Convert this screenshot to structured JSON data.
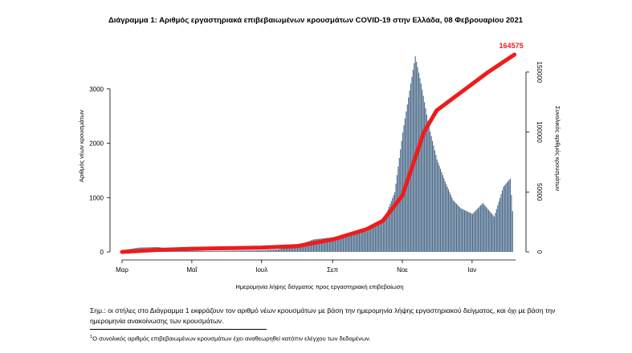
{
  "chart_data": {
    "type": "bar+line",
    "title": "Διάγραμμα 1: Αριθμός εργαστηριακά επιβεβαιωμένων κρουσμάτων COVID-19 στην Ελλάδα, 08 Φεβρουαρίου 2021",
    "xlabel": "Ημερομηνία λήψης δείγματος προς εργαστηριακή επιβεβαίωση",
    "ylabel_left": "Αριθμός νέων κρουσμάτων",
    "ylabel_right": "Συνολικός αριθμός κρουσμάτων",
    "categories": [
      "Μαρ",
      "Μαΐ",
      "Ιουλ",
      "Σεπ",
      "Νοε",
      "Ιαν"
    ],
    "ylim_left": [
      0,
      3750
    ],
    "yticks_left": [
      "0",
      "1000",
      "2000",
      "3000"
    ],
    "ylim_right": [
      0,
      170000
    ],
    "yticks_right": [
      "0",
      "50000",
      "100000",
      "150000"
    ],
    "grid": false,
    "series": [
      {
        "kind": "bar",
        "color": "#4f6e8c",
        "points": [
          {
            "x": "2020-03-01",
            "y": 30
          },
          {
            "x": "2020-03-15",
            "y": 80
          },
          {
            "x": "2020-04-01",
            "y": 90
          },
          {
            "x": "2020-04-15",
            "y": 40
          },
          {
            "x": "2020-05-01",
            "y": 20
          },
          {
            "x": "2020-05-15",
            "y": 15
          },
          {
            "x": "2020-06-01",
            "y": 20
          },
          {
            "x": "2020-06-15",
            "y": 25
          },
          {
            "x": "2020-07-01",
            "y": 30
          },
          {
            "x": "2020-07-15",
            "y": 45
          },
          {
            "x": "2020-08-01",
            "y": 120
          },
          {
            "x": "2020-08-15",
            "y": 230
          },
          {
            "x": "2020-09-01",
            "y": 270
          },
          {
            "x": "2020-09-15",
            "y": 320
          },
          {
            "x": "2020-10-01",
            "y": 380
          },
          {
            "x": "2020-10-15",
            "y": 560
          },
          {
            "x": "2020-10-25",
            "y": 1100
          },
          {
            "x": "2020-11-01",
            "y": 2200
          },
          {
            "x": "2020-11-08",
            "y": 3100
          },
          {
            "x": "2020-11-12",
            "y": 3600
          },
          {
            "x": "2020-11-17",
            "y": 3100
          },
          {
            "x": "2020-11-24",
            "y": 2300
          },
          {
            "x": "2020-12-01",
            "y": 1700
          },
          {
            "x": "2020-12-08",
            "y": 1300
          },
          {
            "x": "2020-12-15",
            "y": 950
          },
          {
            "x": "2020-12-22",
            "y": 800
          },
          {
            "x": "2021-01-01",
            "y": 700
          },
          {
            "x": "2021-01-10",
            "y": 900
          },
          {
            "x": "2021-01-20",
            "y": 650
          },
          {
            "x": "2021-01-28",
            "y": 1200
          },
          {
            "x": "2021-02-03",
            "y": 1350
          },
          {
            "x": "2021-02-06",
            "y": 450
          }
        ]
      },
      {
        "kind": "line",
        "color": "#ee1c1c",
        "points": [
          {
            "x": "2020-03-01",
            "y": 0
          },
          {
            "x": "2020-04-01",
            "y": 1700
          },
          {
            "x": "2020-05-01",
            "y": 2600
          },
          {
            "x": "2020-06-01",
            "y": 3100
          },
          {
            "x": "2020-07-01",
            "y": 3600
          },
          {
            "x": "2020-08-01",
            "y": 4800
          },
          {
            "x": "2020-09-01",
            "y": 10300
          },
          {
            "x": "2020-10-01",
            "y": 19000
          },
          {
            "x": "2020-10-15",
            "y": 26000
          },
          {
            "x": "2020-11-01",
            "y": 47000
          },
          {
            "x": "2020-11-10",
            "y": 72000
          },
          {
            "x": "2020-11-20",
            "y": 100000
          },
          {
            "x": "2020-12-01",
            "y": 118000
          },
          {
            "x": "2020-12-15",
            "y": 128000
          },
          {
            "x": "2021-01-01",
            "y": 140000
          },
          {
            "x": "2021-01-15",
            "y": 150000
          },
          {
            "x": "2021-02-07",
            "y": 164575
          }
        ]
      }
    ],
    "annotations": [
      "164575"
    ]
  },
  "note": "Σημ.: οι στήλες στο Διάγραμμα 1 εκφράζουν τον αριθμό νέων κρουσμάτων με βάση την ημερομηνία λήψης εργαστηριακού δείγματος, και όχι με βάση την ημερομηνία ανακοίνωσης των κρουσμάτων.",
  "footnote": {
    "marker": "1",
    "text": "Ο συνολικός αριθμός επιβεβαιωμένων κρουσμάτων έχει αναθεωρηθεί κατόπιν ελέγχου των δεδομένων."
  }
}
